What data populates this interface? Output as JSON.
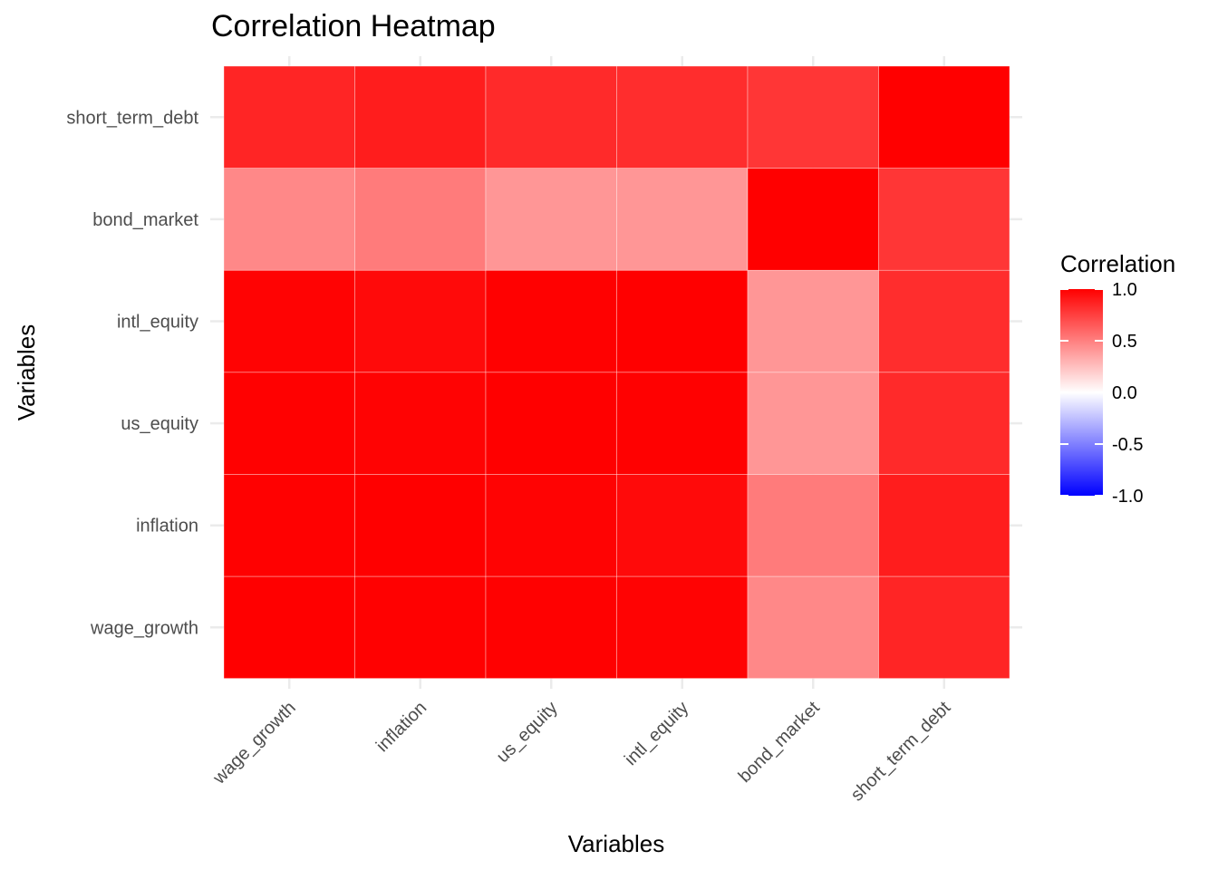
{
  "chart_data": {
    "type": "heatmap",
    "title": "Correlation Heatmap",
    "xlabel": "Variables",
    "ylabel": "Variables",
    "x_categories": [
      "wage_growth",
      "inflation",
      "us_equity",
      "intl_equity",
      "bond_market",
      "short_term_debt"
    ],
    "y_categories": [
      "wage_growth",
      "inflation",
      "us_equity",
      "intl_equity",
      "bond_market",
      "short_term_debt"
    ],
    "values": [
      [
        1.0,
        0.99,
        0.99,
        0.98,
        0.25,
        0.75
      ],
      [
        0.99,
        1.0,
        0.98,
        0.93,
        0.3,
        0.8
      ],
      [
        0.99,
        0.98,
        1.0,
        0.99,
        0.2,
        0.72
      ],
      [
        0.98,
        0.93,
        0.99,
        1.0,
        0.2,
        0.7
      ],
      [
        0.25,
        0.3,
        0.2,
        0.2,
        1.0,
        0.65
      ],
      [
        0.75,
        0.8,
        0.72,
        0.7,
        0.65,
        1.0
      ]
    ],
    "legend": {
      "title": "Correlation",
      "limits": [
        -1.0,
        1.0
      ],
      "breaks": [
        "1.0",
        "0.5",
        "0.0",
        "-0.5",
        "-1.0"
      ],
      "low_color": "#0000ff",
      "mid_color": "#ffffff",
      "high_color": "#ff0000",
      "placement": "right"
    },
    "grid": true
  }
}
